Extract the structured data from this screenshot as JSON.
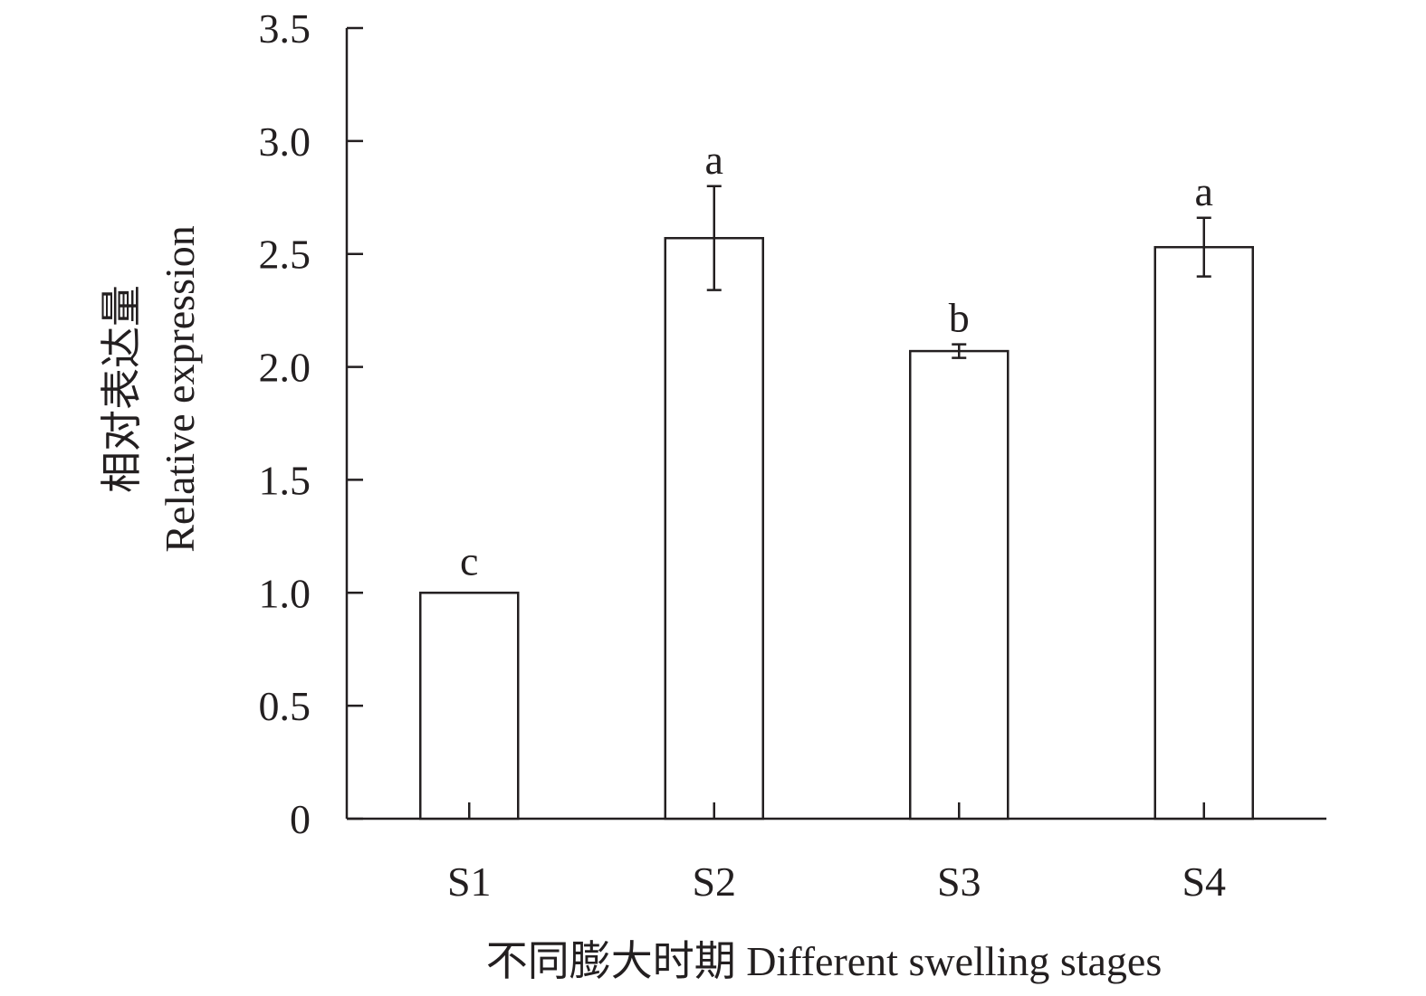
{
  "chart_data": {
    "type": "bar",
    "categories": [
      "S1",
      "S2",
      "S3",
      "S4"
    ],
    "series": [
      {
        "values": [
          1.0,
          2.57,
          2.07,
          2.53
        ],
        "errors": [
          0.0,
          0.23,
          0.03,
          0.13
        ],
        "significance": [
          "c",
          "a",
          "b",
          "a"
        ]
      }
    ],
    "ylim": [
      0,
      3.5
    ],
    "yticks": [
      "0",
      "0.5",
      "1.0",
      "1.5",
      "2.0",
      "2.5",
      "3.0",
      "3.5"
    ],
    "ytick_values": [
      0,
      0.5,
      1.0,
      1.5,
      2.0,
      2.5,
      3.0,
      3.5
    ],
    "ylabel_cn": "相对表达量",
    "ylabel_en": "Relative expression",
    "xlabel": "不同膨大时期 Different swelling stages",
    "grid": false,
    "legend": "none",
    "colors": {
      "bar_fill": "#ffffff",
      "stroke": "#231f20"
    }
  }
}
